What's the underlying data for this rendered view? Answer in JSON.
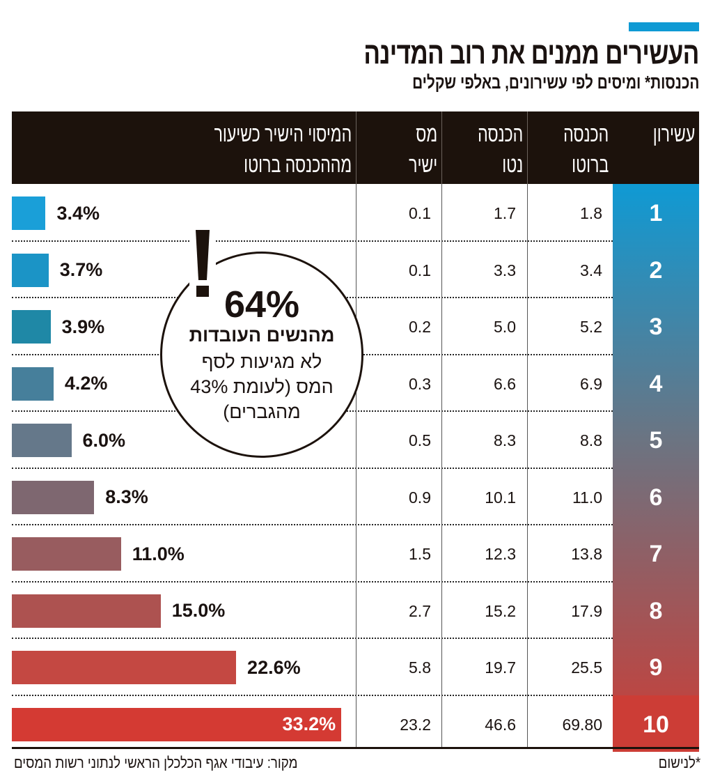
{
  "title": "העשירים ממנים את רוב המדינה",
  "subtitle": "הכנסות* ומיסים לפי עשירונים, באלפי שקלים",
  "accent_color": "#0f9ad4",
  "chart_data": {
    "type": "table",
    "columns": [
      "עשירון",
      "הכנסה ברוטו",
      "הכנסה נטו",
      "מס ישיר",
      "המיסוי הישיר כשיעור מההכנסה ברוטו"
    ],
    "column_lines": [
      [
        "עשירון"
      ],
      [
        "הכנסה",
        "ברוטו"
      ],
      [
        "הכנסה",
        "נטו"
      ],
      [
        "מס",
        "ישיר"
      ],
      [
        "המיסוי הישיר כשיעור",
        "מההכנסה ברוטו"
      ]
    ],
    "rows": [
      {
        "decile": "1",
        "gross": "1.8",
        "net": "1.7",
        "tax": "0.1",
        "rate": 3.4,
        "rate_label": "3.4%",
        "color": "#1a9fd8"
      },
      {
        "decile": "2",
        "gross": "3.4",
        "net": "3.3",
        "tax": "0.1",
        "rate": 3.7,
        "rate_label": "3.7%",
        "color": "#1b94c6"
      },
      {
        "decile": "3",
        "gross": "5.2",
        "net": "5.0",
        "tax": "0.2",
        "rate": 3.9,
        "rate_label": "3.9%",
        "color": "#1f88a6"
      },
      {
        "decile": "4",
        "gross": "6.9",
        "net": "6.6",
        "tax": "0.3",
        "rate": 4.2,
        "rate_label": "4.2%",
        "color": "#467f9b"
      },
      {
        "decile": "5",
        "gross": "8.8",
        "net": "8.3",
        "tax": "0.5",
        "rate": 6.0,
        "rate_label": "6.0%",
        "color": "#65788a"
      },
      {
        "decile": "6",
        "gross": "11.0",
        "net": "10.1",
        "tax": "0.9",
        "rate": 8.3,
        "rate_label": "8.3%",
        "color": "#7e6770"
      },
      {
        "decile": "7",
        "gross": "13.8",
        "net": "12.3",
        "tax": "1.5",
        "rate": 11.0,
        "rate_label": "11.0%",
        "color": "#985c5f"
      },
      {
        "decile": "8",
        "gross": "17.9",
        "net": "15.2",
        "tax": "2.7",
        "rate": 15.0,
        "rate_label": "15.0%",
        "color": "#ad5250"
      },
      {
        "decile": "9",
        "gross": "25.5",
        "net": "19.7",
        "tax": "5.8",
        "rate": 22.6,
        "rate_label": "22.6%",
        "color": "#c44842"
      },
      {
        "decile": "10",
        "gross": "69.80",
        "net": "46.6",
        "tax": "23.2",
        "rate": 33.2,
        "rate_label": "33.2%",
        "color": "#d43a33"
      }
    ]
  },
  "callout": {
    "big": "64%",
    "bold_line": "מהנשים העובדות",
    "lines": [
      "לא מגיעות לסף",
      "המס (לעומת 43%",
      "מהגברים)"
    ]
  },
  "footnote": "*לנישום",
  "source": "מקור: עיבודי אגף הכלכלן הראשי לנתוני רשות המסים"
}
